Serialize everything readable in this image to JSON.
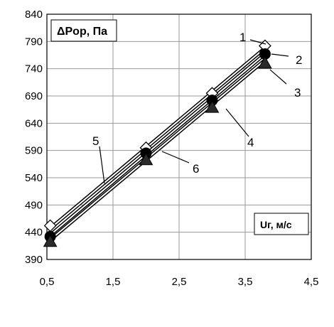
{
  "chart_data": {
    "type": "line",
    "ylabel": "ΔPор, Па",
    "xlabel": "Uг, м/с",
    "xlim": [
      0.5,
      4.5
    ],
    "ylim": [
      390,
      840
    ],
    "x_ticks": [
      "0,5",
      "1,5",
      "2,5",
      "3,5",
      "4,5"
    ],
    "x_tick_values": [
      0.5,
      1.5,
      2.5,
      3.5,
      4.5
    ],
    "y_ticks": [
      "390",
      "440",
      "490",
      "540",
      "590",
      "640",
      "690",
      "740",
      "790",
      "840"
    ],
    "y_tick_values": [
      390,
      440,
      490,
      540,
      590,
      640,
      690,
      740,
      790,
      840
    ],
    "grid": true,
    "series": [
      {
        "name": "1",
        "marker": "diamond",
        "x": [
          0.55,
          2.0,
          3.0,
          3.8
        ],
        "y": [
          452,
          595,
          695,
          782
        ]
      },
      {
        "name": "2",
        "marker": "circle",
        "x": [
          0.55,
          2.0,
          3.0,
          3.8
        ],
        "y": [
          432,
          585,
          682,
          767
        ]
      },
      {
        "name": "3",
        "marker": "triangle",
        "x": [
          0.55,
          2.0,
          3.0,
          3.8
        ],
        "y": [
          423,
          573,
          669,
          750
        ]
      }
    ],
    "fit_lines": [
      {
        "name": "5",
        "x": [
          0.55,
          3.8
        ],
        "y": [
          447,
          778
        ]
      },
      {
        "name": "4",
        "x": [
          0.55,
          3.8
        ],
        "y": [
          435,
          767
        ]
      },
      {
        "name": "6",
        "x": [
          0.55,
          3.8
        ],
        "y": [
          426,
          756
        ]
      }
    ],
    "callouts": [
      "1",
      "2",
      "3",
      "4",
      "5",
      "6"
    ]
  }
}
